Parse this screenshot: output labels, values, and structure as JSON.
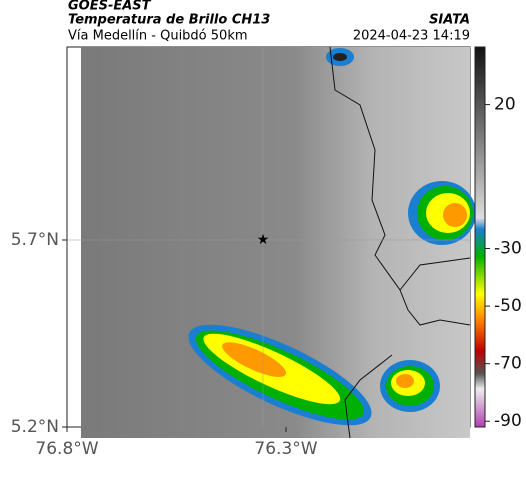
{
  "header": {
    "agency": "GOES-EAST",
    "title": "Temperatura de Brillo CH13",
    "source": "SIATA",
    "subtitle": "Vía Medellín - Quibdó 50km",
    "timestamp": "2024-04-23 14:19"
  },
  "map": {
    "xlim": [
      -76.8,
      -75.88
    ],
    "ylim": [
      5.2,
      6.216
    ],
    "xticks": [
      {
        "value": -76.8,
        "label": "76.8°W"
      },
      {
        "value": -76.3,
        "label": "76.3°W"
      }
    ],
    "yticks": [
      {
        "value": 5.2,
        "label": "5.2°N"
      },
      {
        "value": 5.7,
        "label": "5.7°N"
      }
    ]
  },
  "colorbar": {
    "lim": [
      40,
      -92
    ],
    "ticks": [
      20,
      -30,
      -50,
      -70,
      -90
    ]
  }
}
